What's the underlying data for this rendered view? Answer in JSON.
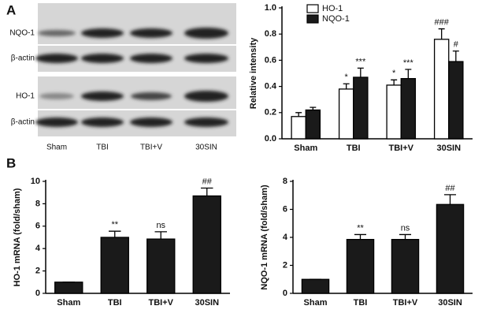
{
  "panels": [
    "A",
    "B"
  ],
  "blot": {
    "rows": [
      "NQO-1",
      "β-actin",
      "HO-1",
      "β-actin"
    ],
    "lanes": [
      "Sham",
      "TBI",
      "TBI+V",
      "30SIN"
    ]
  },
  "chart_data": [
    {
      "type": "bar",
      "y_label": "Relative intensity",
      "categories": [
        "Sham",
        "TBI",
        "TBI+V",
        "30SIN"
      ],
      "series": [
        {
          "name": "HO-1",
          "color": "#ffffff",
          "values": [
            0.17,
            0.38,
            0.41,
            0.76
          ],
          "errors": [
            0.03,
            0.04,
            0.04,
            0.08
          ],
          "annotations": [
            null,
            "*",
            "*",
            "###"
          ]
        },
        {
          "name": "NQO-1",
          "color": "#1a1a1a",
          "values": [
            0.22,
            0.47,
            0.46,
            0.59
          ],
          "errors": [
            0.02,
            0.07,
            0.07,
            0.08
          ],
          "annotations": [
            null,
            "***",
            "***",
            "#"
          ]
        }
      ],
      "ylim": [
        0,
        1
      ],
      "yticks": [
        {
          "value": 0,
          "label": "0.0"
        },
        0.2,
        0.4,
        0.6,
        0.8,
        {
          "value": 1,
          "label": "1.0"
        }
      ],
      "legend": "top-left"
    },
    {
      "type": "bar",
      "y_label": "HO-1 mRNA (fold/sham)",
      "categories": [
        "Sham",
        "TBI",
        "TBI+V",
        "30SIN"
      ],
      "color": "#1a1a1a",
      "values": [
        1,
        5.0,
        4.85,
        8.7
      ],
      "errors": [
        0,
        0.55,
        0.65,
        0.7
      ],
      "annotations": [
        null,
        "**",
        "ns",
        "##"
      ],
      "ylim": [
        0,
        10
      ],
      "yticks": [
        0,
        2,
        4,
        6,
        8,
        10
      ]
    },
    {
      "type": "bar",
      "y_label": "NQO-1 mRNA (fold/sham)",
      "categories": [
        "Sham",
        "TBI",
        "TBI+V",
        "30SIN"
      ],
      "color": "#1a1a1a",
      "values": [
        1,
        3.85,
        3.85,
        6.35
      ],
      "errors": [
        0,
        0.35,
        0.35,
        0.7
      ],
      "annotations": [
        null,
        "**",
        "ns",
        "##"
      ],
      "ylim": [
        0,
        8
      ],
      "yticks": [
        0,
        2,
        4,
        6,
        8
      ]
    }
  ]
}
